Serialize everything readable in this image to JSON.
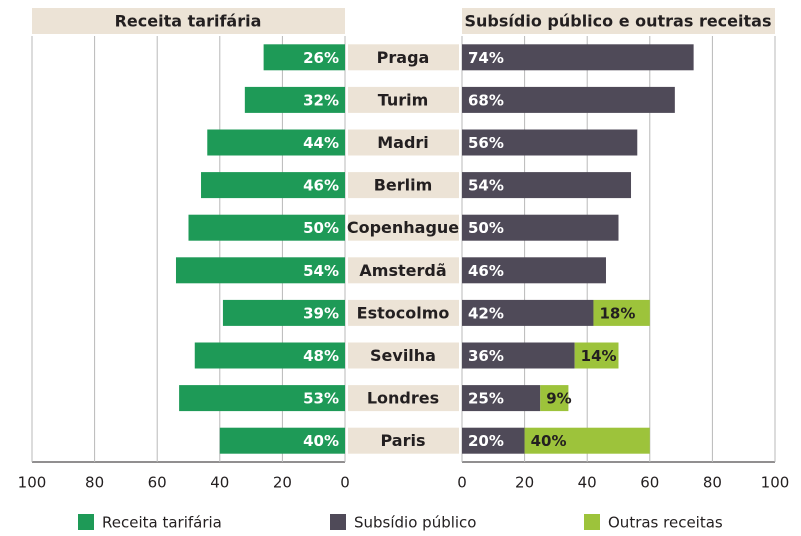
{
  "chart_data": {
    "type": "butterfly",
    "left_title": "Receita tarifária",
    "right_title": "Subsídio público e outras receitas",
    "categories": [
      "Praga",
      "Turim",
      "Madri",
      "Berlim",
      "Copenhague",
      "Amsterdã",
      "Estocolmo",
      "Sevilha",
      "Londres",
      "Paris"
    ],
    "series": [
      {
        "name": "Receita tarifária",
        "color": "#1e9a57",
        "side": "left",
        "values": [
          26,
          32,
          44,
          46,
          50,
          54,
          39,
          48,
          53,
          40
        ],
        "value_labels": [
          "26%",
          "32%",
          "44%",
          "46%",
          "50%",
          "54%",
          "39%",
          "48%",
          "53%",
          "40%"
        ]
      },
      {
        "name": "Subsídio público",
        "color": "#4f4a58",
        "side": "right",
        "values": [
          74,
          68,
          56,
          54,
          50,
          46,
          42,
          36,
          25,
          20
        ],
        "value_labels": [
          "74%",
          "68%",
          "56%",
          "54%",
          "50%",
          "46%",
          "42%",
          "36%",
          "25%",
          "20%"
        ]
      },
      {
        "name": "Outras receitas",
        "color": "#9dc33b",
        "side": "right",
        "values": [
          null,
          null,
          null,
          null,
          null,
          null,
          18,
          14,
          9,
          40
        ],
        "value_labels": [
          null,
          null,
          null,
          null,
          null,
          null,
          "18%",
          "14%",
          "9%",
          "40%"
        ]
      }
    ],
    "left_xlim": [
      100,
      0
    ],
    "left_xticks": [
      100,
      80,
      60,
      40,
      20,
      0
    ],
    "right_xlim": [
      0,
      100
    ],
    "right_xticks": [
      0,
      20,
      40,
      60,
      80,
      100
    ],
    "grid": true
  }
}
